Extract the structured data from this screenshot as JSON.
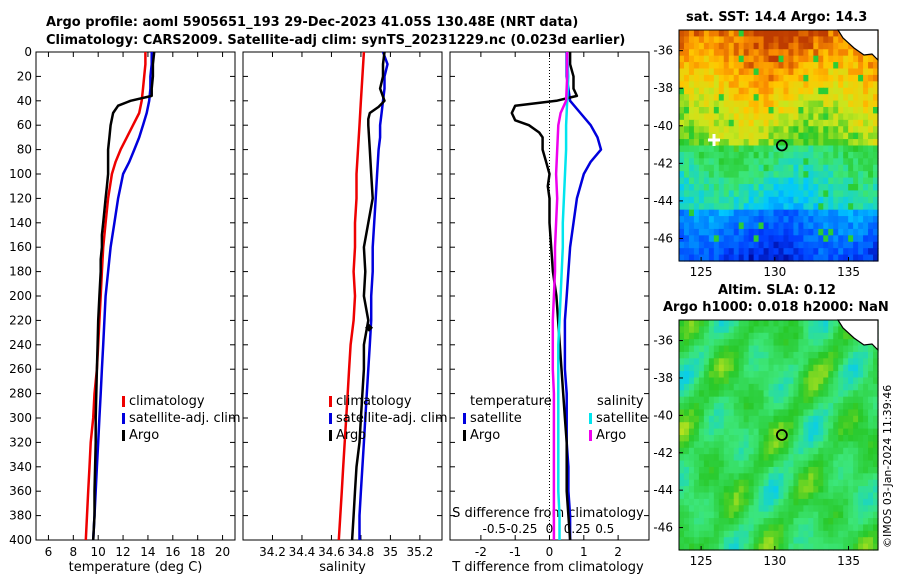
{
  "titles": {
    "line1": "Argo profile: aoml 5905651_193 29-Dec-2023 41.05S 130.48E (NRT data)",
    "line2": "Climatology: CARS2009. Satellite-adj clim: synTS_20231229.nc (0.023d earlier)",
    "sst": "sat. SST: 14.4 Argo: 14.3",
    "sla": "Altim. SLA: 0.12",
    "h": "Argo h1000: 0.018 h2000: NaN"
  },
  "stamp": "©IMOS 03-Jan-2024 11:39:46",
  "colors": {
    "clim": "#ee0000",
    "sat": "#0000dd",
    "argo": "#000000",
    "sat_s": "#00e5ee",
    "argo_s": "#ee00ee"
  },
  "chart_data": [
    {
      "type": "line",
      "title": "",
      "xlabel": "temperature (deg C)",
      "ylabel": "",
      "xlim": [
        5,
        21
      ],
      "ylim": [
        400,
        0
      ],
      "xticks": [
        "6",
        "8",
        "10",
        "12",
        "14",
        "16",
        "18",
        "20"
      ],
      "yticks": [
        "0",
        "20",
        "40",
        "60",
        "80",
        "100",
        "120",
        "140",
        "160",
        "180",
        "200",
        "220",
        "240",
        "260",
        "280",
        "300",
        "320",
        "340",
        "360",
        "380",
        "400"
      ],
      "legend": [
        "climatology",
        "satellite-adj. clim",
        "Argo"
      ],
      "series": [
        {
          "name": "climatology",
          "depth": [
            0,
            10,
            20,
            30,
            40,
            50,
            60,
            70,
            80,
            90,
            100,
            120,
            140,
            160,
            180,
            200,
            220,
            240,
            260,
            280,
            300,
            320,
            340,
            360,
            380,
            400
          ],
          "values": [
            13.8,
            13.8,
            13.7,
            13.6,
            13.5,
            13.3,
            12.8,
            12.3,
            11.8,
            11.4,
            11.1,
            10.8,
            10.6,
            10.4,
            10.3,
            10.2,
            10.1,
            10.0,
            9.9,
            9.7,
            9.6,
            9.4,
            9.3,
            9.2,
            9.1,
            9.0
          ]
        },
        {
          "name": "satellite-adj. clim",
          "depth": [
            0,
            10,
            20,
            30,
            40,
            50,
            60,
            70,
            80,
            90,
            100,
            110,
            120,
            140,
            160,
            180,
            200,
            220,
            240,
            260,
            280,
            300,
            320,
            340,
            360,
            380,
            400
          ],
          "values": [
            14.3,
            14.3,
            14.2,
            14.2,
            14.1,
            13.9,
            13.6,
            13.3,
            12.9,
            12.5,
            12.0,
            11.8,
            11.6,
            11.3,
            11.0,
            10.8,
            10.6,
            10.5,
            10.4,
            10.3,
            10.2,
            10.1,
            10.0,
            9.9,
            9.8,
            9.7,
            9.6
          ]
        },
        {
          "name": "Argo",
          "depth": [
            0,
            10,
            20,
            30,
            36,
            40,
            44,
            50,
            60,
            70,
            80,
            90,
            100,
            110,
            120,
            130,
            140,
            150,
            160,
            170,
            180,
            200,
            220,
            240,
            260,
            280,
            300,
            320,
            340,
            360,
            380,
            400
          ],
          "values": [
            14.5,
            14.4,
            14.4,
            14.3,
            14.3,
            12.6,
            11.6,
            11.2,
            11.0,
            10.9,
            10.8,
            10.8,
            10.8,
            10.7,
            10.6,
            10.5,
            10.4,
            10.3,
            10.3,
            10.2,
            10.2,
            10.1,
            10.0,
            9.95,
            9.9,
            9.85,
            9.8,
            9.8,
            9.75,
            9.7,
            9.7,
            9.6
          ]
        }
      ]
    },
    {
      "type": "line",
      "title": "",
      "xlabel": "salinity",
      "ylabel": "",
      "xlim": [
        34.0,
        35.35
      ],
      "ylim": [
        400,
        0
      ],
      "xticks": [
        "34.2",
        "34.4",
        "34.6",
        "34.8",
        "35",
        "35.2"
      ],
      "yticks": [],
      "legend": [
        "climatology",
        "satellite-adj. clim",
        "Argo"
      ],
      "series": [
        {
          "name": "climatology",
          "depth": [
            0,
            20,
            40,
            60,
            80,
            100,
            120,
            140,
            160,
            180,
            200,
            220,
            240,
            260,
            280,
            300,
            320,
            340,
            360,
            380,
            400
          ],
          "values": [
            34.82,
            34.81,
            34.8,
            34.79,
            34.78,
            34.77,
            34.77,
            34.76,
            34.76,
            34.75,
            34.76,
            34.75,
            34.73,
            34.72,
            34.71,
            34.7,
            34.69,
            34.68,
            34.67,
            34.66,
            34.65
          ]
        },
        {
          "name": "satellite-adj. clim",
          "depth": [
            0,
            10,
            20,
            30,
            40,
            50,
            60,
            70,
            80,
            100,
            120,
            140,
            160,
            180,
            200,
            220,
            240,
            260,
            280,
            300,
            320,
            340,
            360,
            380,
            400
          ],
          "values": [
            34.95,
            34.98,
            34.96,
            34.96,
            34.95,
            34.94,
            34.93,
            34.93,
            34.92,
            34.91,
            34.9,
            34.89,
            34.88,
            34.88,
            34.87,
            34.87,
            34.86,
            34.85,
            34.84,
            34.83,
            34.82,
            34.81,
            34.8,
            34.79,
            34.79
          ]
        },
        {
          "name": "Argo",
          "depth": [
            0,
            10,
            20,
            30,
            40,
            45,
            50,
            55,
            60,
            80,
            100,
            120,
            140,
            160,
            180,
            200,
            220,
            240,
            260,
            280,
            300,
            320,
            340,
            360,
            380,
            400
          ],
          "values": [
            34.96,
            34.95,
            34.95,
            34.93,
            34.96,
            34.92,
            34.86,
            34.85,
            34.85,
            34.86,
            34.87,
            34.88,
            34.85,
            34.82,
            34.83,
            34.82,
            34.85,
            34.82,
            34.82,
            34.81,
            34.8,
            34.79,
            34.77,
            34.76,
            34.75,
            34.74
          ]
        }
      ]
    },
    {
      "type": "line",
      "title": "",
      "xlabel": "T difference from climatology",
      "ylabel": "",
      "xlim": [
        -2.9,
        2.9
      ],
      "ylim": [
        400,
        0
      ],
      "xticks": [
        "-2",
        "-1",
        "0",
        "1",
        "2"
      ],
      "yticks": [],
      "secondary_axis": {
        "label": "S difference from climatology",
        "xlim": [
          -0.9,
          0.9
        ],
        "xticks": [
          "-0.5",
          "-0.25",
          "0",
          "0.25",
          "0.5"
        ]
      },
      "legend": [
        "temperature",
        "satellite",
        "Argo",
        "salinity",
        "satellite",
        "Argo"
      ],
      "series": [
        {
          "name": "temperature satellite",
          "depth": [
            0,
            20,
            40,
            50,
            60,
            70,
            80,
            90,
            100,
            120,
            140,
            160,
            180,
            200,
            220,
            240,
            260,
            280,
            300,
            320,
            340,
            360,
            380,
            400
          ],
          "values": [
            0.5,
            0.5,
            0.6,
            0.9,
            1.2,
            1.4,
            1.5,
            1.2,
            1.0,
            0.8,
            0.7,
            0.6,
            0.55,
            0.5,
            0.45,
            0.45,
            0.45,
            0.5,
            0.5,
            0.5,
            0.55,
            0.55,
            0.6,
            0.6
          ]
        },
        {
          "name": "temperature Argo",
          "depth": [
            0,
            10,
            20,
            30,
            36,
            40,
            44,
            50,
            56,
            60,
            66,
            70,
            80,
            90,
            100,
            110,
            120,
            140,
            160,
            180,
            200,
            220,
            240,
            260,
            280,
            300,
            320,
            340,
            360,
            380,
            400
          ],
          "values": [
            0.6,
            0.6,
            0.7,
            0.7,
            0.8,
            0.2,
            -1.0,
            -1.1,
            -1.0,
            -0.6,
            -0.3,
            -0.2,
            -0.2,
            -0.1,
            0.0,
            -0.05,
            0.0,
            0.0,
            0.05,
            0.1,
            0.2,
            0.25,
            0.3,
            0.35,
            0.4,
            0.45,
            0.5,
            0.5,
            0.5,
            0.55,
            0.6
          ]
        },
        {
          "name": "salinity satellite",
          "depth": [
            0,
            20,
            40,
            60,
            80,
            100,
            120,
            140,
            160,
            180,
            200,
            220,
            240,
            260,
            280,
            300,
            320,
            340,
            360,
            380,
            400
          ],
          "values": [
            0.16,
            0.17,
            0.16,
            0.15,
            0.15,
            0.14,
            0.13,
            0.12,
            0.12,
            0.11,
            0.1,
            0.09,
            0.08,
            0.08,
            0.08,
            0.08,
            0.08,
            0.08,
            0.08,
            0.09,
            0.09
          ]
        },
        {
          "name": "salinity Argo",
          "depth": [
            0,
            20,
            40,
            50,
            60,
            80,
            100,
            120,
            140,
            160,
            180,
            200,
            220,
            240,
            260,
            280,
            300,
            320,
            340,
            360,
            380,
            400
          ],
          "values": [
            0.16,
            0.16,
            0.15,
            0.1,
            0.08,
            0.07,
            0.06,
            0.07,
            0.06,
            0.05,
            0.05,
            0.04,
            0.03,
            0.03,
            0.03,
            0.04,
            0.04,
            0.04,
            0.04,
            0.04,
            0.04,
            0.04
          ]
        }
      ]
    },
    {
      "type": "heatmap",
      "title": "sat. SST: 14.4 Argo: 14.3",
      "xlim": [
        123.5,
        137
      ],
      "ylim": [
        -47.2,
        -34.9
      ],
      "xticks": [
        "125",
        "130",
        "135"
      ],
      "yticks": [
        "-36",
        "-38",
        "-40",
        "-42",
        "-44",
        "-46"
      ],
      "marker": {
        "lon": 130.48,
        "lat": -41.05
      }
    },
    {
      "type": "heatmap",
      "title": "Argo h1000: 0.018 h2000: NaN",
      "xlim": [
        123.5,
        137
      ],
      "ylim": [
        -47.2,
        -34.9
      ],
      "xticks": [
        "125",
        "130",
        "135"
      ],
      "yticks": [
        "-36",
        "-38",
        "-40",
        "-42",
        "-44",
        "-46"
      ],
      "marker": {
        "lon": 130.48,
        "lat": -41.05
      }
    }
  ]
}
